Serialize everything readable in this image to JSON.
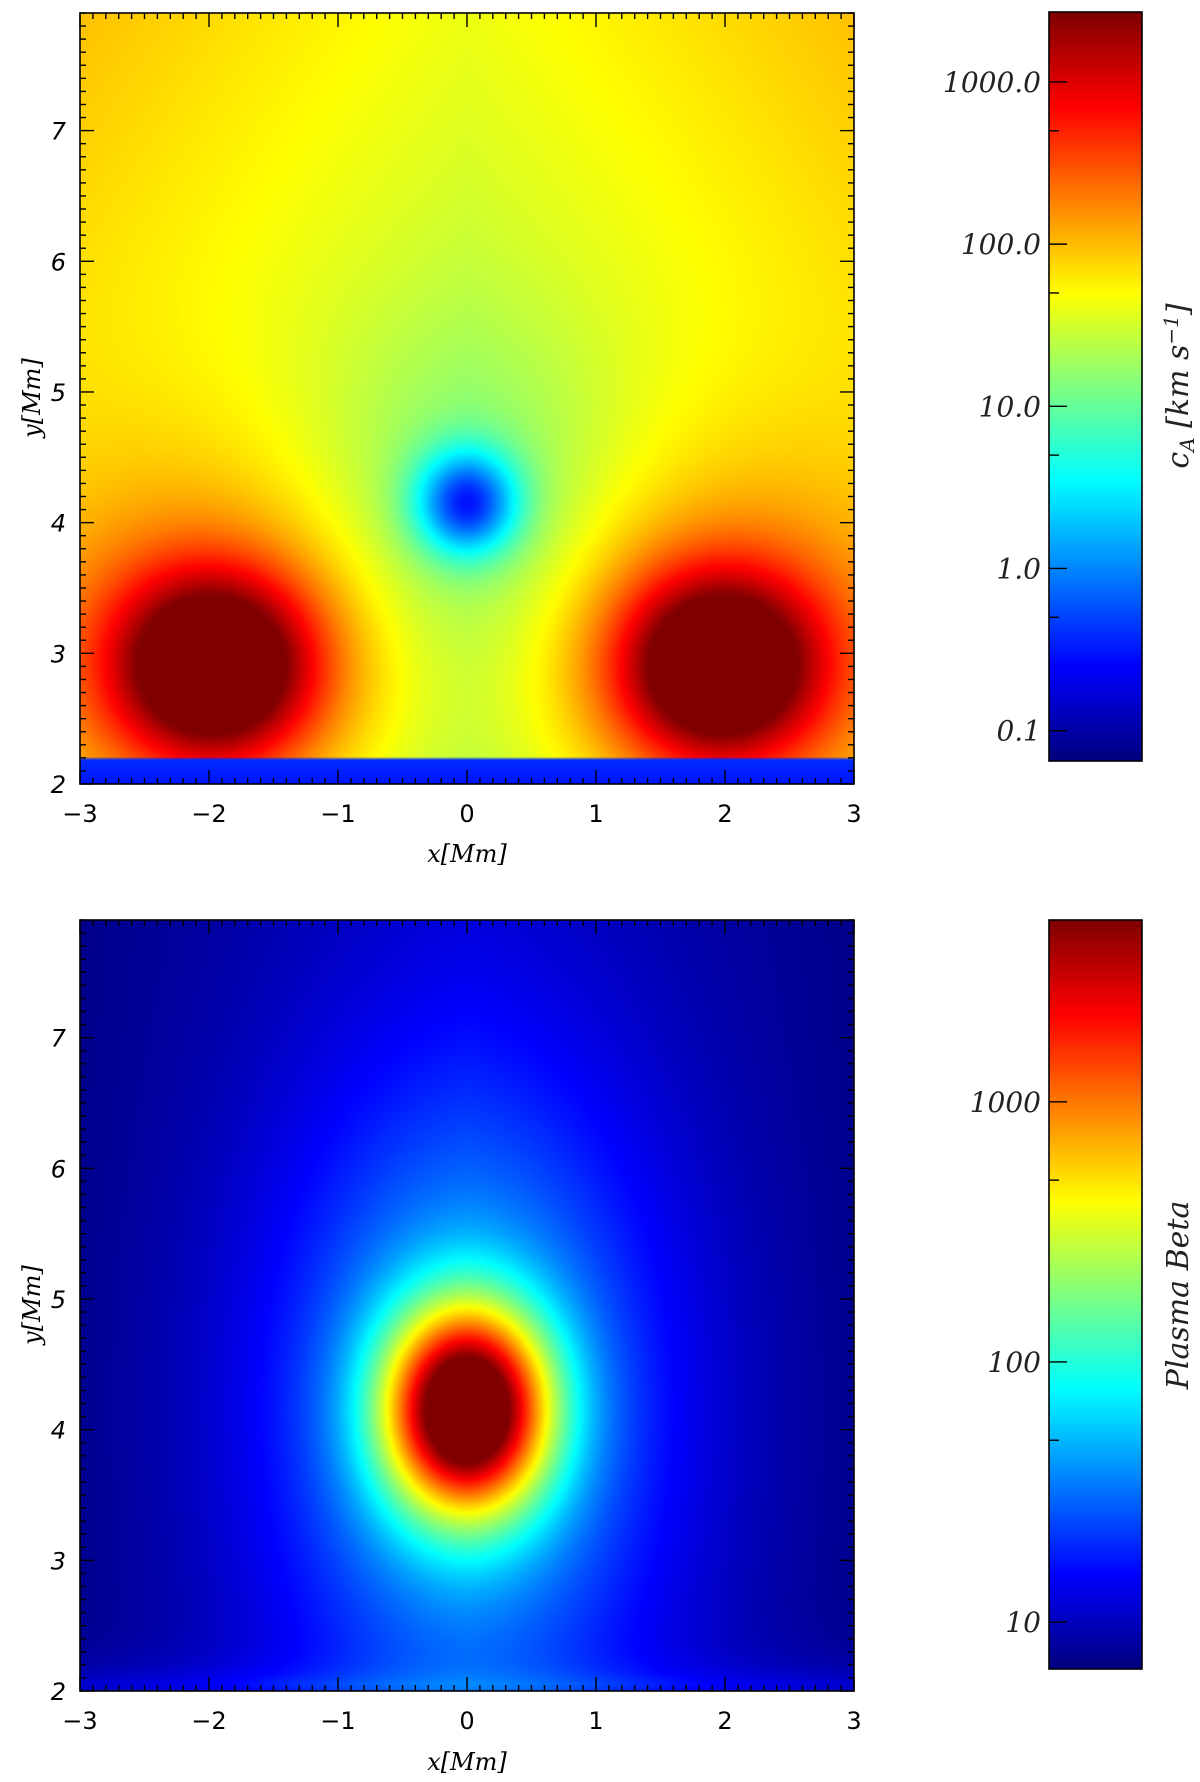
{
  "chart_data": [
    {
      "type": "heatmap",
      "title": "",
      "xlabel": "x[Mm]",
      "ylabel": "y[Mm]",
      "xlim": [
        -3,
        3
      ],
      "ylim": [
        2,
        7.9
      ],
      "xticks": [
        "−3",
        "−2",
        "−1",
        "0",
        "1",
        "2",
        "3"
      ],
      "yticks": [
        "2",
        "3",
        "4",
        "5",
        "6",
        "7"
      ],
      "colorscale": "jet",
      "colorbar": {
        "label": "c_A [km s^-1]",
        "scale": "log",
        "range": [
          0.065,
          2700
        ],
        "ticks": [
          0.1,
          1.0,
          10.0,
          100.0,
          1000.0
        ],
        "tick_labels": [
          "0.1",
          "1.0",
          "10.0",
          "100.0",
          "1000.0"
        ]
      },
      "features": [
        {
          "name": "peak",
          "x": -1.95,
          "y": 2.9,
          "value": 1500
        },
        {
          "name": "peak",
          "x": 1.95,
          "y": 2.9,
          "value": 1500
        },
        {
          "name": "null point",
          "x": 0.0,
          "y": 4.15,
          "value": 0.3
        },
        {
          "name": "low layer",
          "y_range": [
            2.0,
            2.2
          ],
          "value": 0.3
        }
      ]
    },
    {
      "type": "heatmap",
      "title": "",
      "xlabel": "x[Mm]",
      "ylabel": "y[Mm]",
      "xlim": [
        -3,
        3
      ],
      "ylim": [
        2,
        7.9
      ],
      "xticks": [
        "−3",
        "−2",
        "−1",
        "0",
        "1",
        "2",
        "3"
      ],
      "yticks": [
        "2",
        "3",
        "4",
        "5",
        "6",
        "7"
      ],
      "colorscale": "jet",
      "colorbar": {
        "label": "Plasma Beta",
        "scale": "log",
        "range": [
          6.6,
          5000
        ],
        "ticks": [
          10,
          100,
          1000
        ],
        "tick_labels": [
          "10",
          "100",
          "1000"
        ]
      },
      "features": [
        {
          "name": "peak",
          "x": 0.0,
          "y": 4.15,
          "value": 4000
        },
        {
          "name": "background",
          "value": 10
        }
      ]
    }
  ]
}
